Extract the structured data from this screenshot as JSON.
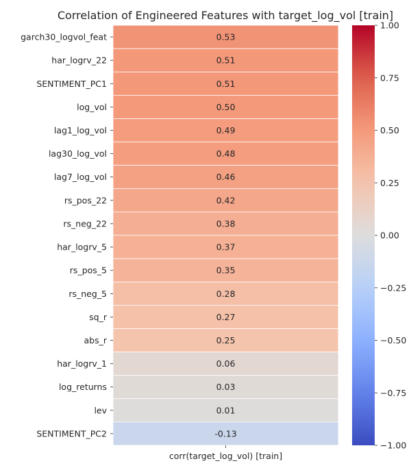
{
  "chart_data": {
    "type": "heatmap",
    "title": "Correlation of Engineered Features with target_log_vol [train]",
    "xlabel": "",
    "ylabel": "",
    "columns": [
      "corr(target_log_vol) [train]"
    ],
    "rows": [
      "garch30_logvol_feat",
      "har_logrv_22",
      "SENTIMENT_PC1",
      "log_vol",
      "lag1_log_vol",
      "lag30_log_vol",
      "lag7_log_vol",
      "rs_pos_22",
      "rs_neg_22",
      "har_logrv_5",
      "rs_pos_5",
      "rs_neg_5",
      "sq_r",
      "abs_r",
      "har_logrv_1",
      "log_returns",
      "lev",
      "SENTIMENT_PC2"
    ],
    "values": [
      0.53,
      0.51,
      0.51,
      0.5,
      0.49,
      0.48,
      0.46,
      0.42,
      0.38,
      0.37,
      0.35,
      0.28,
      0.27,
      0.25,
      0.06,
      0.03,
      0.01,
      -0.13
    ],
    "value_labels": [
      "0.53",
      "0.51",
      "0.51",
      "0.50",
      "0.49",
      "0.48",
      "0.46",
      "0.42",
      "0.38",
      "0.37",
      "0.35",
      "0.28",
      "0.27",
      "0.25",
      "0.06",
      "0.03",
      "0.01",
      "-0.13"
    ],
    "colorscale": "coolwarm",
    "vmin": -1.0,
    "vmax": 1.0,
    "colorbar_ticks": [
      1.0,
      0.75,
      0.5,
      0.25,
      0.0,
      -0.25,
      -0.5,
      -0.75,
      -1.0
    ],
    "colorbar_tick_labels": [
      "1.00",
      "0.75",
      "0.50",
      "0.25",
      "0.00",
      "−0.25",
      "−0.50",
      "−0.75",
      "−1.00"
    ],
    "grid": true,
    "legend": "colorbar-right"
  }
}
